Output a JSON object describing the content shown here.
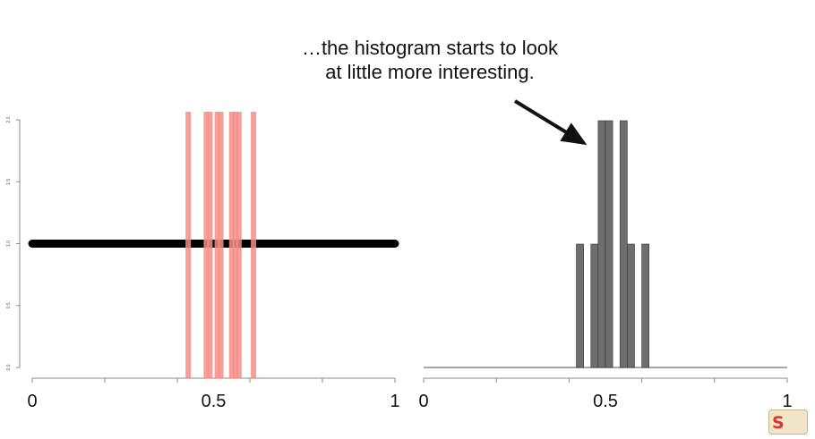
{
  "annotation": {
    "text": "…the histogram starts to look at little more interesting."
  },
  "logo": {
    "text": "S"
  },
  "colors": {
    "axis": "#888888",
    "black_line": "#000000",
    "red_marks": "#f58e88",
    "hist_bars": "#6e6e6e"
  },
  "chart_data": [
    {
      "type": "line",
      "subtype": "number line with sample marks",
      "xlim": [
        0,
        1
      ],
      "ylim": [
        0,
        2
      ],
      "x_ticks": [
        0,
        0.5,
        1
      ],
      "x_tick_labels": [
        "0",
        "0.5",
        "1"
      ],
      "y_ticks": [
        0,
        0.5,
        1,
        1.5,
        2
      ],
      "y_tick_labels": [
        "0.0",
        "0.5",
        "1.0",
        "1.5",
        "2.0"
      ],
      "line": {
        "x": [
          0,
          1
        ],
        "y": [
          1,
          1
        ]
      },
      "samples": [
        0.43,
        0.48,
        0.49,
        0.51,
        0.52,
        0.55,
        0.56,
        0.57,
        0.61
      ],
      "grid": false
    },
    {
      "type": "bar",
      "subtype": "histogram",
      "xlim": [
        0,
        1
      ],
      "ylim": [
        0,
        2
      ],
      "x_ticks": [
        0,
        0.5,
        1
      ],
      "x_tick_labels": [
        "0",
        "0.5",
        "1"
      ],
      "bins": [
        {
          "start": 0.42,
          "end": 0.44,
          "count": 1
        },
        {
          "start": 0.46,
          "end": 0.48,
          "count": 1
        },
        {
          "start": 0.48,
          "end": 0.5,
          "count": 2
        },
        {
          "start": 0.5,
          "end": 0.52,
          "count": 2
        },
        {
          "start": 0.54,
          "end": 0.56,
          "count": 2
        },
        {
          "start": 0.56,
          "end": 0.58,
          "count": 1
        },
        {
          "start": 0.6,
          "end": 0.62,
          "count": 1
        }
      ],
      "grid": false
    }
  ]
}
